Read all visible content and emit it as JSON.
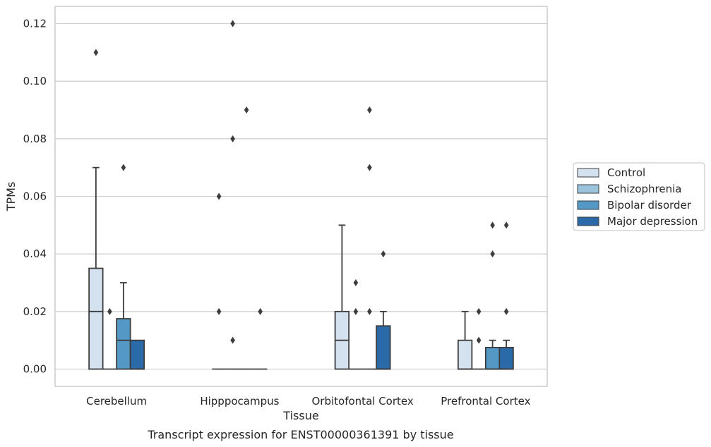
{
  "caption": "Transcript expression for ENST00000361391 by tissue",
  "chart_data": {
    "type": "box",
    "title": "",
    "xlabel": "Tissue",
    "ylabel": "TPMs",
    "ylim": [
      -0.006,
      0.126
    ],
    "yticks": [
      "0.00",
      "0.02",
      "0.04",
      "0.06",
      "0.08",
      "0.10",
      "0.12"
    ],
    "ytick_values": [
      0,
      0.02,
      0.04,
      0.06,
      0.08,
      0.1,
      0.12
    ],
    "grid": "horizontal",
    "legend_position": "right",
    "categories": [
      "Cerebellum",
      "Hipppocampus",
      "Orbitofontal Cortex",
      "Prefrontal Cortex"
    ],
    "series": [
      {
        "name": "Control",
        "color": "#d4e2f0",
        "boxes": [
          {
            "q1": 0,
            "median": 0.02,
            "q3": 0.035,
            "whislo": 0,
            "whishi": 0.07,
            "fliers": [
              0.11
            ]
          },
          {
            "q1": 0,
            "median": 0,
            "q3": 0,
            "whislo": 0,
            "whishi": 0,
            "fliers": [
              0.02,
              0.06
            ]
          },
          {
            "q1": 0,
            "median": 0.01,
            "q3": 0.02,
            "whislo": 0,
            "whishi": 0.05,
            "fliers": []
          },
          {
            "q1": 0,
            "median": 0,
            "q3": 0.01,
            "whislo": 0,
            "whishi": 0.02,
            "fliers": []
          }
        ]
      },
      {
        "name": "Schizophrenia",
        "color": "#9cc3dc",
        "boxes": [
          {
            "q1": 0,
            "median": 0,
            "q3": 0,
            "whislo": 0,
            "whishi": 0,
            "fliers": [
              0.02
            ]
          },
          {
            "q1": 0,
            "median": 0,
            "q3": 0,
            "whislo": 0,
            "whishi": 0,
            "fliers": [
              0.01,
              0.08,
              0.12
            ]
          },
          {
            "q1": 0,
            "median": 0,
            "q3": 0,
            "whislo": 0,
            "whishi": 0,
            "fliers": [
              0.02,
              0.03
            ]
          },
          {
            "q1": 0,
            "median": 0,
            "q3": 0,
            "whislo": 0,
            "whishi": 0,
            "fliers": [
              0.01,
              0.02
            ]
          }
        ]
      },
      {
        "name": "Bipolar disorder",
        "color": "#5498c6",
        "boxes": [
          {
            "q1": 0,
            "median": 0.01,
            "q3": 0.0175,
            "whislo": 0,
            "whishi": 0.03,
            "fliers": [
              0.07
            ]
          },
          {
            "q1": 0,
            "median": 0,
            "q3": 0,
            "whislo": 0,
            "whishi": 0,
            "fliers": [
              0.09
            ]
          },
          {
            "q1": 0,
            "median": 0,
            "q3": 0,
            "whislo": 0,
            "whishi": 0,
            "fliers": [
              0.02,
              0.07,
              0.09
            ]
          },
          {
            "q1": 0,
            "median": 0,
            "q3": 0.0075,
            "whislo": 0,
            "whishi": 0.01,
            "fliers": [
              0.04,
              0.05
            ]
          }
        ]
      },
      {
        "name": "Major depression",
        "color": "#2b6aa8",
        "boxes": [
          {
            "q1": 0,
            "median": 0,
            "q3": 0.01,
            "whislo": 0,
            "whishi": 0.01,
            "fliers": []
          },
          {
            "q1": 0,
            "median": 0,
            "q3": 0,
            "whislo": 0,
            "whishi": 0,
            "fliers": [
              0.02
            ]
          },
          {
            "q1": 0,
            "median": 0,
            "q3": 0.015,
            "whislo": 0,
            "whishi": 0.02,
            "fliers": [
              0.04
            ]
          },
          {
            "q1": 0,
            "median": 0,
            "q3": 0.0075,
            "whislo": 0,
            "whishi": 0.01,
            "fliers": [
              0.02,
              0.05
            ]
          }
        ]
      }
    ]
  }
}
